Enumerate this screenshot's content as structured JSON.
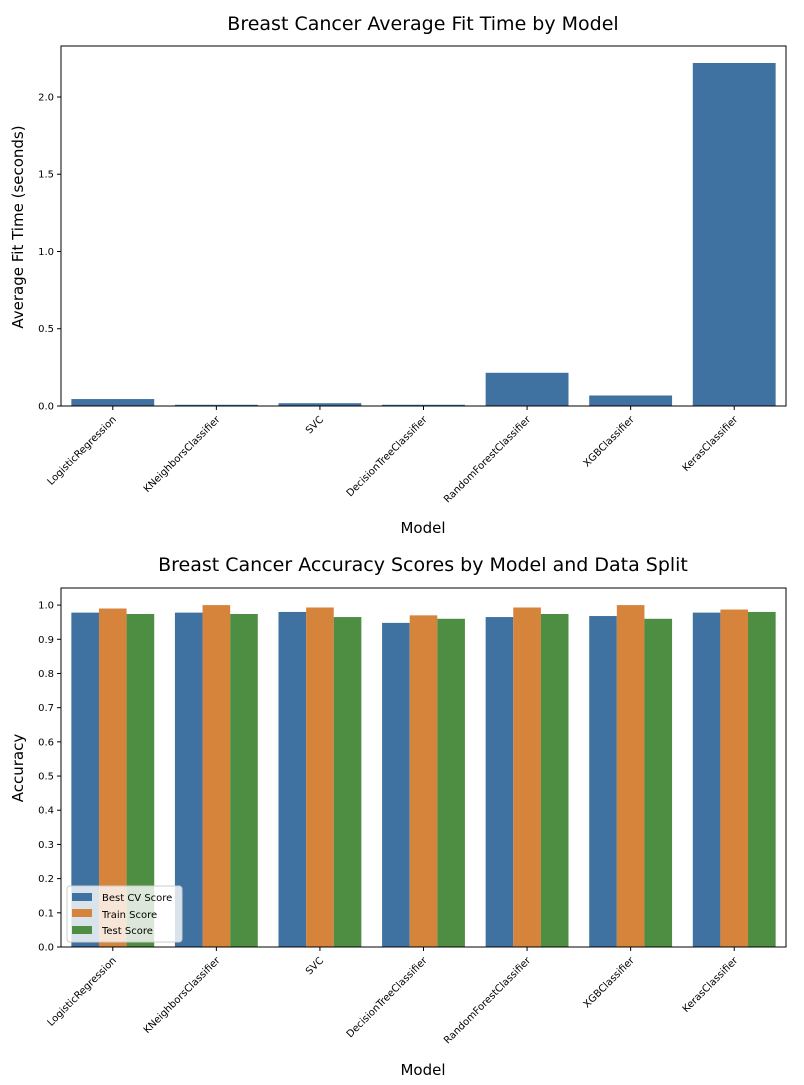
{
  "chart_data": [
    {
      "type": "bar",
      "title": "Breast Cancer Average Fit Time by Model",
      "xlabel": "Model",
      "ylabel": "Average Fit Time (seconds)",
      "categories": [
        "LogisticRegression",
        "KNeighborsClassifier",
        "SVC",
        "DecisionTreeClassifier",
        "RandomForestClassifier",
        "XGBClassifier",
        "KerasClassifier"
      ],
      "values": [
        0.045,
        0.008,
        0.018,
        0.008,
        0.215,
        0.068,
        2.22
      ],
      "ylim": [
        0,
        2.33
      ],
      "yticks": [
        0.0,
        0.5,
        1.0,
        1.5,
        2.0
      ],
      "ytick_labels": [
        "0.0",
        "0.5",
        "1.0",
        "1.5",
        "2.0"
      ],
      "grid": false,
      "color": "#3f72a1"
    },
    {
      "type": "bar",
      "title": "Breast Cancer Accuracy Scores by Model and Data Split",
      "xlabel": "Model",
      "ylabel": "Accuracy",
      "categories": [
        "LogisticRegression",
        "KNeighborsClassifier",
        "SVC",
        "DecisionTreeClassifier",
        "RandomForestClassifier",
        "XGBClassifier",
        "KerasClassifier"
      ],
      "series": [
        {
          "name": "Best CV Score",
          "color": "#3f72a1",
          "values": [
            0.978,
            0.978,
            0.98,
            0.948,
            0.965,
            0.968,
            0.978
          ]
        },
        {
          "name": "Train Score",
          "color": "#d6833b",
          "values": [
            0.99,
            1.0,
            0.993,
            0.97,
            0.993,
            1.0,
            0.987
          ]
        },
        {
          "name": "Test Score",
          "color": "#4e8e42",
          "values": [
            0.974,
            0.974,
            0.965,
            0.96,
            0.974,
            0.96,
            0.98
          ]
        }
      ],
      "ylim": [
        0,
        1.05
      ],
      "yticks": [
        0.0,
        0.1,
        0.2,
        0.3,
        0.4,
        0.5,
        0.6,
        0.7,
        0.8,
        0.9,
        1.0
      ],
      "ytick_labels": [
        "0.0",
        "0.1",
        "0.2",
        "0.3",
        "0.4",
        "0.5",
        "0.6",
        "0.7",
        "0.8",
        "0.9",
        "1.0"
      ],
      "legend": "lower-left",
      "grid": false
    }
  ]
}
